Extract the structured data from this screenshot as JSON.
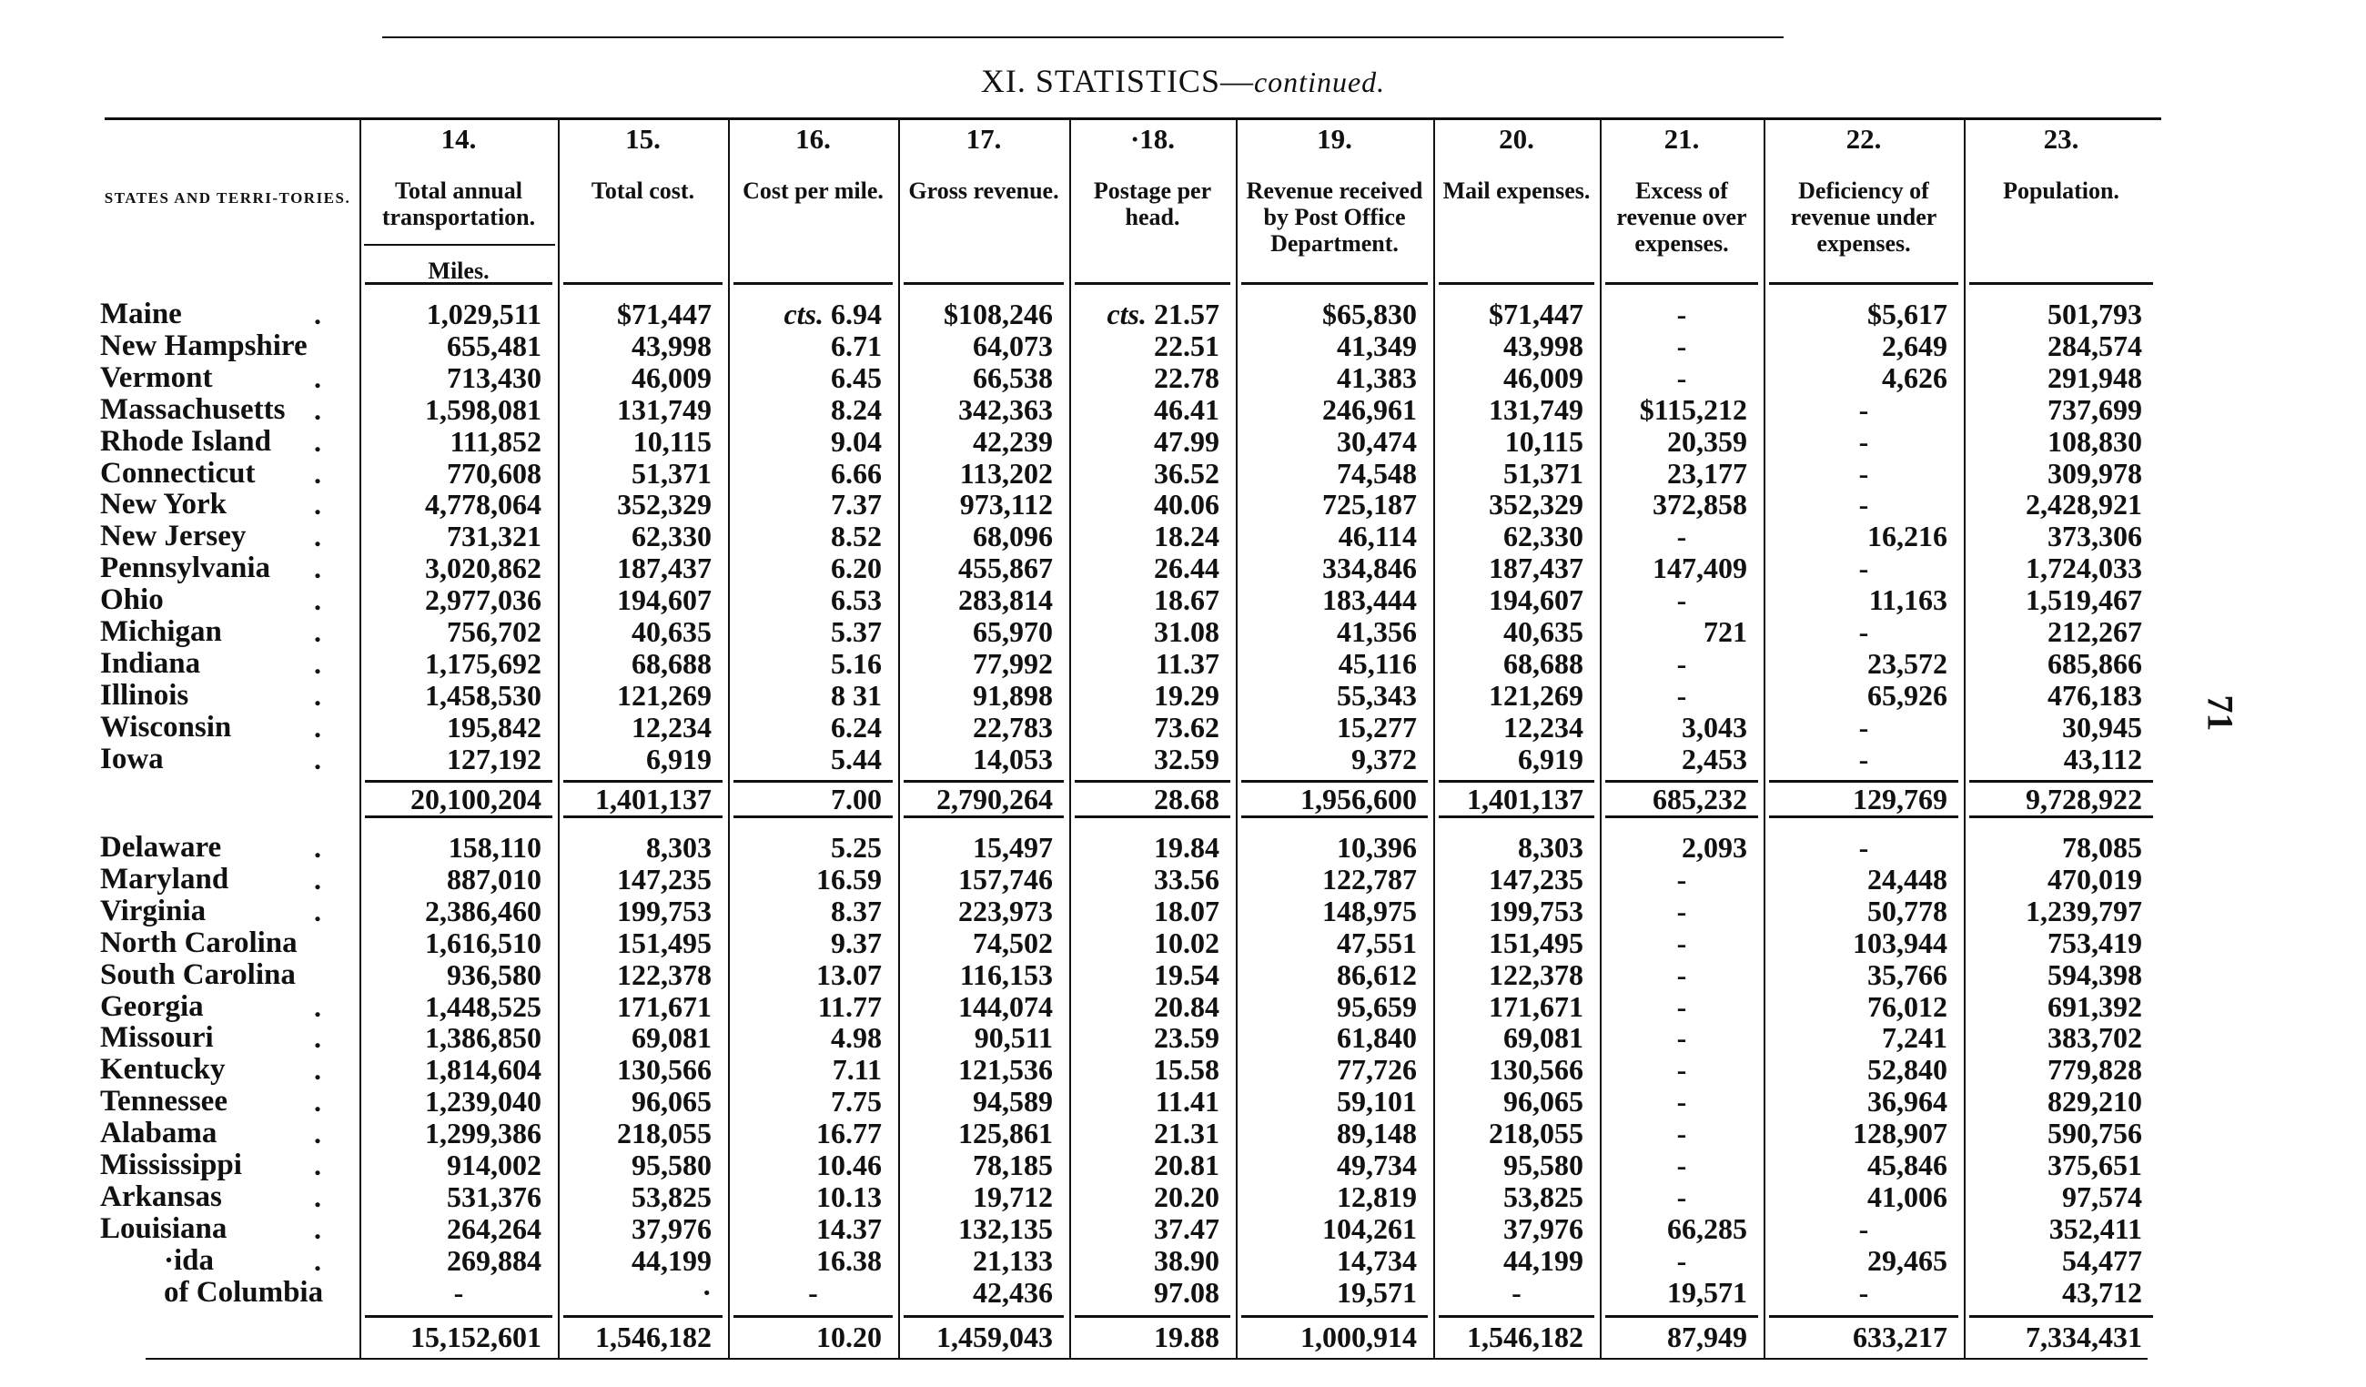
{
  "title": {
    "main": "XI. STATISTICS—",
    "italic": "continued."
  },
  "page_number": "71",
  "state_header": "STATES AND TERRI-TORIES.",
  "miles_label": "Miles.",
  "columns": [
    {
      "num": "14.",
      "label": "Total annual transportation."
    },
    {
      "num": "15.",
      "label": "Total cost."
    },
    {
      "num": "16.",
      "label": "Cost per mile."
    },
    {
      "num": "17.",
      "label": "Gross revenue."
    },
    {
      "num": "·18.",
      "label": "Postage per head."
    },
    {
      "num": "19.",
      "label": "Revenue received by Post Office Department."
    },
    {
      "num": "20.",
      "label": "Mail expenses."
    },
    {
      "num": "21.",
      "label": "Excess of revenue over expenses."
    },
    {
      "num": "22.",
      "label": "Deficiency of revenue under expenses."
    },
    {
      "num": "23.",
      "label": "Population."
    }
  ],
  "group1": {
    "rows": [
      {
        "state": "Maine",
        "dot": true,
        "values": [
          "1,029,511",
          "$71,447",
          "cts. 6.94",
          "$108,246",
          "cts. 21.57",
          "$65,830",
          "$71,447",
          "-",
          "$5,617",
          "501,793"
        ]
      },
      {
        "state": "New Hampshire",
        "dot": false,
        "values": [
          "655,481",
          "43,998",
          "6.71",
          "64,073",
          "22.51",
          "41,349",
          "43,998",
          "-",
          "2,649",
          "284,574"
        ]
      },
      {
        "state": "Vermont",
        "dot": true,
        "values": [
          "713,430",
          "46,009",
          "6.45",
          "66,538",
          "22.78",
          "41,383",
          "46,009",
          "-",
          "4,626",
          "291,948"
        ]
      },
      {
        "state": "Massachusetts",
        "dot": true,
        "values": [
          "1,598,081",
          "131,749",
          "8.24",
          "342,363",
          "46.41",
          "246,961",
          "131,749",
          "$115,212",
          "-",
          "737,699"
        ]
      },
      {
        "state": "Rhode Island",
        "dot": true,
        "values": [
          "111,852",
          "10,115",
          "9.04",
          "42,239",
          "47.99",
          "30,474",
          "10,115",
          "20,359",
          "-",
          "108,830"
        ]
      },
      {
        "state": "Connecticut",
        "dot": true,
        "values": [
          "770,608",
          "51,371",
          "6.66",
          "113,202",
          "36.52",
          "74,548",
          "51,371",
          "23,177",
          "-",
          "309,978"
        ]
      },
      {
        "state": "New York",
        "dot": true,
        "values": [
          "4,778,064",
          "352,329",
          "7.37",
          "973,112",
          "40.06",
          "725,187",
          "352,329",
          "372,858",
          "-",
          "2,428,921"
        ]
      },
      {
        "state": "New Jersey",
        "dot": true,
        "values": [
          "731,321",
          "62,330",
          "8.52",
          "68,096",
          "18.24",
          "46,114",
          "62,330",
          "-",
          "16,216",
          "373,306"
        ]
      },
      {
        "state": "Pennsylvania",
        "dot": true,
        "values": [
          "3,020,862",
          "187,437",
          "6.20",
          "455,867",
          "26.44",
          "334,846",
          "187,437",
          "147,409",
          "-",
          "1,724,033"
        ]
      },
      {
        "state": "Ohio",
        "dot": true,
        "values": [
          "2,977,036",
          "194,607",
          "6.53",
          "283,814",
          "18.67",
          "183,444",
          "194,607",
          "-",
          "11,163",
          "1,519,467"
        ]
      },
      {
        "state": "Michigan",
        "dot": true,
        "values": [
          "756,702",
          "40,635",
          "5.37",
          "65,970",
          "31.08",
          "41,356",
          "40,635",
          "721",
          "-",
          "212,267"
        ]
      },
      {
        "state": "Indiana",
        "dot": true,
        "values": [
          "1,175,692",
          "68,688",
          "5.16",
          "77,992",
          "11.37",
          "45,116",
          "68,688",
          "-",
          "23,572",
          "685,866"
        ]
      },
      {
        "state": "Illinois",
        "dot": true,
        "values": [
          "1,458,530",
          "121,269",
          "8 31",
          "91,898",
          "19.29",
          "55,343",
          "121,269",
          "-",
          "65,926",
          "476,183"
        ]
      },
      {
        "state": "Wisconsin",
        "dot": true,
        "values": [
          "195,842",
          "12,234",
          "6.24",
          "22,783",
          "73.62",
          "15,277",
          "12,234",
          "3,043",
          "-",
          "30,945"
        ]
      },
      {
        "state": "Iowa",
        "dot": true,
        "values": [
          "127,192",
          "6,919",
          "5.44",
          "14,053",
          "32.59",
          "9,372",
          "6,919",
          "2,453",
          "-",
          "43,112"
        ]
      }
    ],
    "totals": [
      "20,100,204",
      "1,401,137",
      "7.00",
      "2,790,264",
      "28.68",
      "1,956,600",
      "1,401,137",
      "685,232",
      "129,769",
      "9,728,922"
    ]
  },
  "group2": {
    "rows": [
      {
        "state": "Delaware",
        "dot": true,
        "values": [
          "158,110",
          "8,303",
          "5.25",
          "15,497",
          "19.84",
          "10,396",
          "8,303",
          "2,093",
          "-",
          "78,085"
        ]
      },
      {
        "state": "Maryland",
        "dot": true,
        "values": [
          "887,010",
          "147,235",
          "16.59",
          "157,746",
          "33.56",
          "122,787",
          "147,235",
          "-",
          "24,448",
          "470,019"
        ]
      },
      {
        "state": "Virginia",
        "dot": true,
        "values": [
          "2,386,460",
          "199,753",
          "8.37",
          "223,973",
          "18.07",
          "148,975",
          "199,753",
          "-",
          "50,778",
          "1,239,797"
        ]
      },
      {
        "state": "North Carolina",
        "dot": false,
        "values": [
          "1,616,510",
          "151,495",
          "9.37",
          "74,502",
          "10.02",
          "47,551",
          "151,495",
          "-",
          "103,944",
          "753,419"
        ]
      },
      {
        "state": "South Carolina",
        "dot": false,
        "values": [
          "936,580",
          "122,378",
          "13.07",
          "116,153",
          "19.54",
          "86,612",
          "122,378",
          "-",
          "35,766",
          "594,398"
        ]
      },
      {
        "state": "Georgia",
        "dot": true,
        "values": [
          "1,448,525",
          "171,671",
          "11.77",
          "144,074",
          "20.84",
          "95,659",
          "171,671",
          "-",
          "76,012",
          "691,392"
        ]
      },
      {
        "state": "Missouri",
        "dot": true,
        "values": [
          "1,386,850",
          "69,081",
          "4.98",
          "90,511",
          "23.59",
          "61,840",
          "69,081",
          "-",
          "7,241",
          "383,702"
        ]
      },
      {
        "state": "Kentucky",
        "dot": true,
        "values": [
          "1,814,604",
          "130,566",
          "7.11",
          "121,536",
          "15.58",
          "77,726",
          "130,566",
          "-",
          "52,840",
          "779,828"
        ]
      },
      {
        "state": "Tennessee",
        "dot": true,
        "values": [
          "1,239,040",
          "96,065",
          "7.75",
          "94,589",
          "11.41",
          "59,101",
          "96,065",
          "-",
          "36,964",
          "829,210"
        ]
      },
      {
        "state": "Alabama",
        "dot": true,
        "values": [
          "1,299,386",
          "218,055",
          "16.77",
          "125,861",
          "21.31",
          "89,148",
          "218,055",
          "-",
          "128,907",
          "590,756"
        ]
      },
      {
        "state": "Mississippi",
        "dot": true,
        "values": [
          "914,002",
          "95,580",
          "10.46",
          "78,185",
          "20.81",
          "49,734",
          "95,580",
          "-",
          "45,846",
          "375,651"
        ]
      },
      {
        "state": "Arkansas",
        "dot": true,
        "values": [
          "531,376",
          "53,825",
          "10.13",
          "19,712",
          "20.20",
          "12,819",
          "53,825",
          "-",
          "41,006",
          "97,574"
        ]
      },
      {
        "state": "Louisiana",
        "dot": true,
        "values": [
          "264,264",
          "37,976",
          "14.37",
          "132,135",
          "37.47",
          "104,261",
          "37,976",
          "66,285",
          "-",
          "352,411"
        ]
      },
      {
        "state": "·ida",
        "dot": true,
        "indent": true,
        "values": [
          "269,884",
          "44,199",
          "16.38",
          "21,133",
          "38.90",
          "14,734",
          "44,199",
          "-",
          "29,465",
          "54,477"
        ]
      },
      {
        "state": "of Columbia",
        "dot": false,
        "indent": true,
        "values": [
          "-",
          "·",
          "-",
          "42,436",
          "97.08",
          "19,571",
          "-",
          "19,571",
          "-",
          "43,712"
        ]
      }
    ],
    "totals": [
      "15,152,601",
      "1,546,182",
      "10.20",
      "1,459,043",
      "19.88",
      "1,000,914",
      "1,546,182",
      "87,949",
      "633,217",
      "7,334,431"
    ]
  }
}
